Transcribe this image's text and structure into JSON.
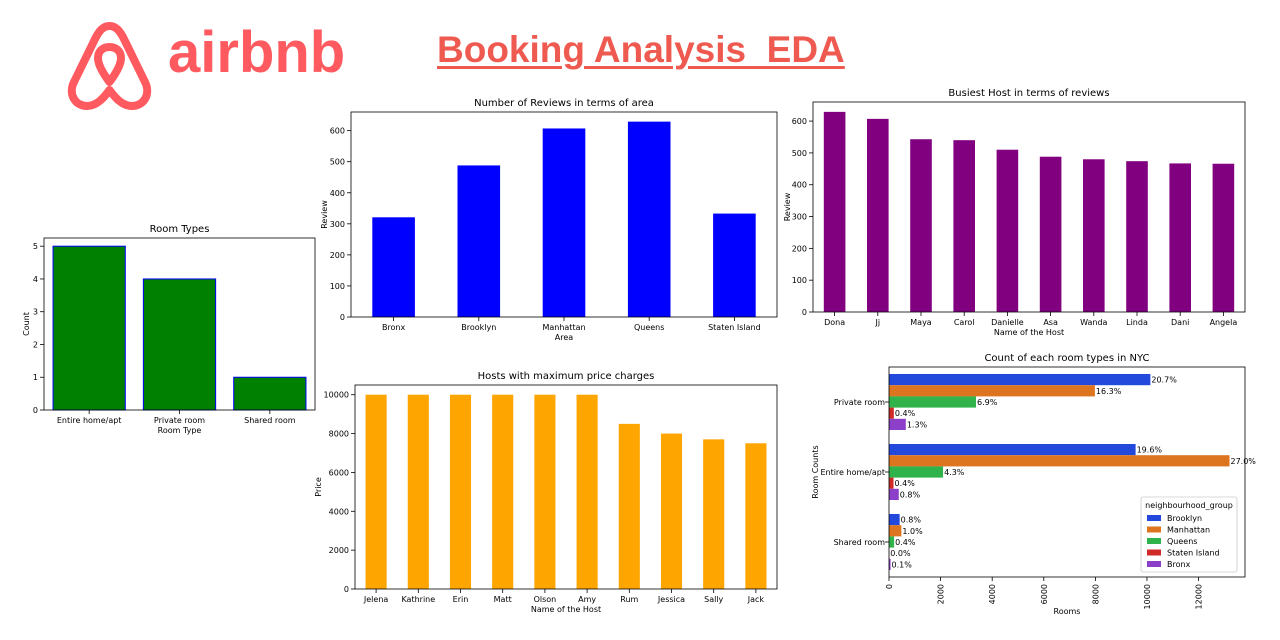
{
  "header": {
    "brand_name": "airbnb",
    "brand_color": "#FF5A5F",
    "title": "Booking Analysis  EDA",
    "title_color": "#EF5A50"
  },
  "chart_data": [
    {
      "id": "room_types",
      "type": "bar",
      "title": "Room Types",
      "xlabel": "Room Type",
      "ylabel": "Count",
      "categories": [
        "Entire home/apt",
        "Private room",
        "Shared room"
      ],
      "values": [
        5,
        4,
        1
      ],
      "ylim": [
        0,
        5.25
      ],
      "yticks": [
        0,
        1,
        2,
        3,
        4,
        5
      ],
      "bar_color": "#008000",
      "edge_color": "#0000FF",
      "grid": false
    },
    {
      "id": "reviews_area",
      "type": "bar",
      "title": "Number of Reviews in terms of area",
      "xlabel": "Area",
      "ylabel": "Review",
      "categories": [
        "Bronx",
        "Brooklyn",
        "Manhattan",
        "Queens",
        "Staten Island"
      ],
      "values": [
        321,
        488,
        607,
        629,
        333
      ],
      "ylim": [
        0,
        660
      ],
      "yticks": [
        0,
        100,
        200,
        300,
        400,
        500,
        600
      ],
      "bar_color": "#0000FF",
      "grid": false
    },
    {
      "id": "busiest_host",
      "type": "bar",
      "title": "Busiest Host in terms of reviews",
      "xlabel": "Name of the Host",
      "ylabel": "Review",
      "categories": [
        "Dona",
        "Jj",
        "Maya",
        "Carol",
        "Danielle",
        "Asa",
        "Wanda",
        "Linda",
        "Dani",
        "Angela"
      ],
      "values": [
        629,
        607,
        543,
        540,
        510,
        488,
        480,
        474,
        467,
        466
      ],
      "ylim": [
        0,
        660
      ],
      "yticks": [
        0,
        100,
        200,
        300,
        400,
        500,
        600
      ],
      "bar_color": "#800080",
      "grid": false
    },
    {
      "id": "max_price_hosts",
      "type": "bar",
      "title": "Hosts with maximum price charges",
      "xlabel": "Name of the Host",
      "ylabel": "Price",
      "categories": [
        "Jelena",
        "Kathrine",
        "Erin",
        "Matt",
        "Olson",
        "Amy",
        "Rum",
        "Jessica",
        "Sally",
        "Jack"
      ],
      "values": [
        10000,
        10000,
        10000,
        10000,
        10000,
        10000,
        8500,
        8000,
        7703,
        7500
      ],
      "ylim": [
        0,
        10500
      ],
      "yticks": [
        0,
        2000,
        4000,
        6000,
        8000,
        10000
      ],
      "bar_color": "#FFA500",
      "grid": false
    },
    {
      "id": "room_type_nyc",
      "type": "bar",
      "orientation": "horizontal",
      "title": "Count of each room types in NYC",
      "xlabel": "Rooms",
      "ylabel": "Room Counts",
      "categories": [
        "Private room",
        "Entire home/apt",
        "Shared room"
      ],
      "xlim": [
        0,
        13800
      ],
      "xticks": [
        0,
        2000,
        4000,
        6000,
        8000,
        10000,
        12000
      ],
      "legend_title": "neighbourhood_group",
      "legend_position": "lower right",
      "series": [
        {
          "name": "Brooklyn",
          "color": "#2348DC",
          "values": [
            10132,
            9559,
            413
          ],
          "labels": [
            "20.7%",
            "19.6%",
            "0.8%"
          ]
        },
        {
          "name": "Manhattan",
          "color": "#DD7420",
          "values": [
            7982,
            13199,
            480
          ],
          "labels": [
            "16.3%",
            "27.0%",
            "1.0%"
          ]
        },
        {
          "name": "Queens",
          "color": "#2FB34A",
          "values": [
            3372,
            2096,
            198
          ],
          "labels": [
            "6.9%",
            "4.3%",
            "0.4%"
          ]
        },
        {
          "name": "Staten Island",
          "color": "#D02B27",
          "values": [
            188,
            176,
            9
          ],
          "labels": [
            "0.4%",
            "0.4%",
            "0.0%"
          ]
        },
        {
          "name": "Bronx",
          "color": "#8C3FC8",
          "values": [
            652,
            379,
            60
          ],
          "labels": [
            "1.3%",
            "0.8%",
            "0.1%"
          ]
        }
      ]
    }
  ]
}
